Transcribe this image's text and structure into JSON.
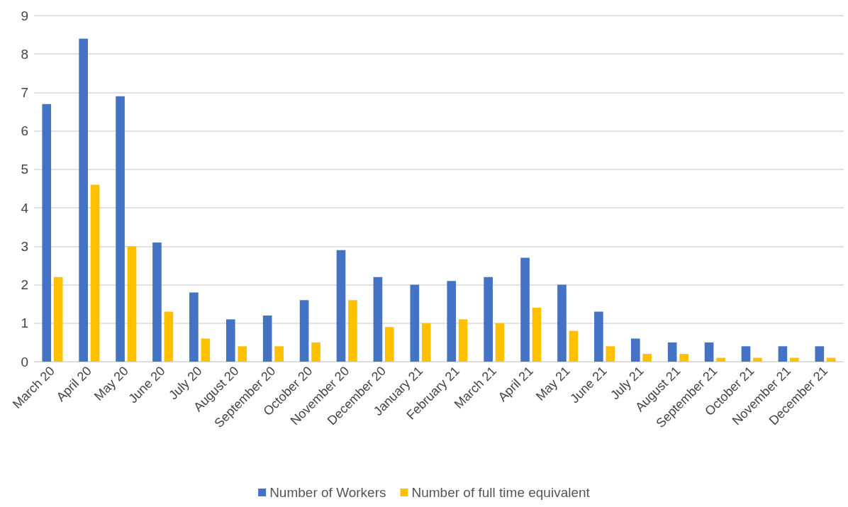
{
  "chart_data": {
    "type": "bar",
    "categories": [
      "March 20",
      "April 20",
      "May 20",
      "June 20",
      "July 20",
      "August 20",
      "September 20",
      "October 20",
      "November 20",
      "December 20",
      "January 21",
      "February 21",
      "March 21",
      "April 21",
      "May 21",
      "June 21",
      "July 21",
      "August 21",
      "September 21",
      "October 21",
      "November 21",
      "December 21"
    ],
    "series": [
      {
        "name": "Number of Workers",
        "color": "#4472c4",
        "values": [
          6.7,
          8.4,
          6.9,
          3.1,
          1.8,
          1.1,
          1.2,
          1.6,
          2.9,
          2.2,
          2.0,
          2.1,
          2.2,
          2.7,
          2.0,
          1.3,
          0.6,
          0.5,
          0.5,
          0.4,
          0.4,
          0.4
        ]
      },
      {
        "name": "Number of full time equivalent",
        "color": "#ffc000",
        "values": [
          2.2,
          4.6,
          3.0,
          1.3,
          0.6,
          0.4,
          0.4,
          0.5,
          1.6,
          0.9,
          1.0,
          1.1,
          1.0,
          1.4,
          0.8,
          0.4,
          0.2,
          0.2,
          0.1,
          0.1,
          0.1,
          0.1
        ]
      }
    ],
    "ylim": [
      0,
      9
    ],
    "yticks": [
      0,
      1,
      2,
      3,
      4,
      5,
      6,
      7,
      8,
      9
    ],
    "grid": "y",
    "legend": "bottom"
  }
}
